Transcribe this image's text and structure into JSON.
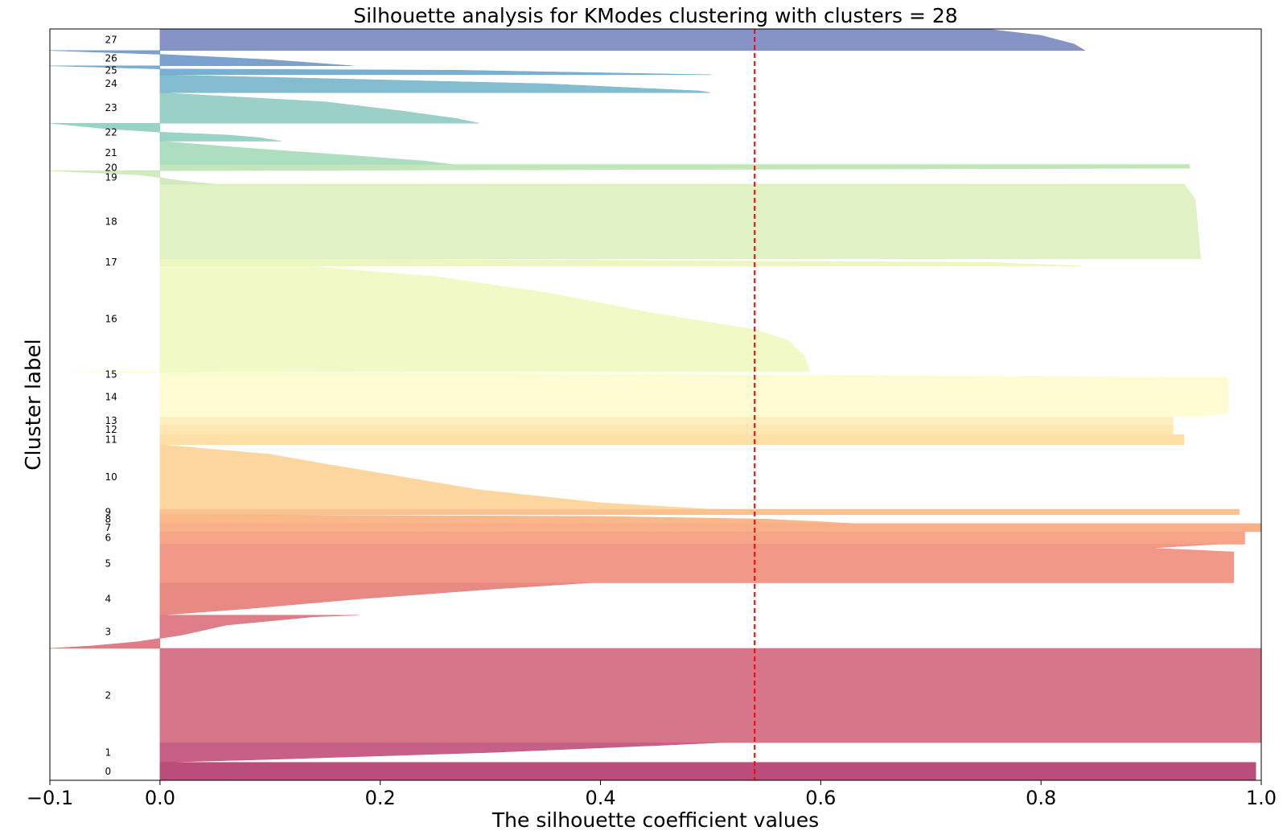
{
  "chart_data": {
    "type": "silhouette",
    "title": "Silhouette analysis for KModes clustering with clusters = 28",
    "xlabel": "The silhouette coefficient values",
    "ylabel": "Cluster label",
    "xlim": [
      -0.1,
      1.0
    ],
    "x_ticks": [
      -0.1,
      0.0,
      0.2,
      0.4,
      0.6,
      0.8,
      1.0
    ],
    "x_tick_labels": [
      "−0.1",
      "0.0",
      "0.2",
      "0.4",
      "0.6",
      "0.8",
      "1.0"
    ],
    "average_score": 0.54,
    "average_line_color": "#ff0000",
    "clusters": [
      {
        "label": "0",
        "ystart": 0,
        "size": 20,
        "color": "#b23a6a",
        "profile": [
          [
            0,
            0.995
          ],
          [
            1,
            0.995
          ]
        ]
      },
      {
        "label": "1",
        "ystart": 20,
        "size": 22,
        "color": "#c24e7a",
        "profile": [
          [
            0,
            0.51
          ],
          [
            0.15,
            0.45
          ],
          [
            0.5,
            0.3
          ],
          [
            0.85,
            0.1
          ],
          [
            1,
            0.0
          ]
        ]
      },
      {
        "label": "2",
        "ystart": 42,
        "size": 105,
        "color": "#d3677e",
        "profile": [
          [
            0,
            1.0
          ],
          [
            1,
            1.0
          ]
        ]
      },
      {
        "label": "3",
        "ystart": 147,
        "size": 37,
        "color": "#dc6f7b",
        "profile": [
          [
            0,
            0.18
          ],
          [
            0.05,
            0.14
          ],
          [
            0.3,
            0.06
          ],
          [
            0.6,
            0.02
          ],
          [
            0.8,
            -0.02
          ],
          [
            0.92,
            -0.06
          ],
          [
            1,
            -0.1
          ]
        ]
      },
      {
        "label": "4",
        "ystart": 184,
        "size": 36,
        "color": "#e57c77",
        "profile": [
          [
            0,
            0.39
          ],
          [
            0.2,
            0.3
          ],
          [
            0.5,
            0.18
          ],
          [
            0.8,
            0.08
          ],
          [
            1,
            0.0
          ]
        ]
      },
      {
        "label": "5",
        "ystart": 220,
        "size": 43,
        "color": "#f08d7c",
        "profile": [
          [
            0,
            0.96
          ],
          [
            0.1,
            0.9
          ],
          [
            0.2,
            0.975
          ],
          [
            1,
            0.975
          ]
        ]
      },
      {
        "label": "6",
        "ystart": 263,
        "size": 14,
        "color": "#f59b7c",
        "profile": [
          [
            0,
            0.985
          ],
          [
            1,
            0.985
          ]
        ]
      },
      {
        "label": "7",
        "ystart": 277,
        "size": 9,
        "color": "#f8a77d",
        "profile": [
          [
            0,
            1.0
          ],
          [
            1,
            1.0
          ]
        ]
      },
      {
        "label": "8",
        "ystart": 286,
        "size": 10,
        "color": "#faaf7d",
        "profile": [
          [
            0,
            0.0
          ],
          [
            0.2,
            0.4
          ],
          [
            0.5,
            0.55
          ],
          [
            0.8,
            0.6
          ],
          [
            1,
            0.63
          ]
        ]
      },
      {
        "label": "9",
        "ystart": 296,
        "size": 6,
        "color": "#fbba83",
        "profile": [
          [
            0,
            0.98
          ],
          [
            1,
            0.98
          ]
        ]
      },
      {
        "label": "10",
        "ystart": 302,
        "size": 72,
        "color": "#fdd195",
        "profile": [
          [
            0,
            0.0
          ],
          [
            0.15,
            0.1
          ],
          [
            0.3,
            0.15
          ],
          [
            0.5,
            0.22
          ],
          [
            0.7,
            0.29
          ],
          [
            0.9,
            0.4
          ],
          [
            1,
            0.5
          ]
        ]
      },
      {
        "label": "11",
        "ystart": 374,
        "size": 11,
        "color": "#fedb9f",
        "profile": [
          [
            0,
            0.93
          ],
          [
            1,
            0.93
          ]
        ]
      },
      {
        "label": "12",
        "ystart": 385,
        "size": 11,
        "color": "#fee4ab",
        "profile": [
          [
            0,
            0.92
          ],
          [
            1,
            0.92
          ]
        ]
      },
      {
        "label": "13",
        "ystart": 396,
        "size": 9,
        "color": "#feecb8",
        "profile": [
          [
            0,
            0.92
          ],
          [
            1,
            0.92
          ]
        ]
      },
      {
        "label": "14",
        "ystart": 405,
        "size": 44,
        "color": "#fffccf",
        "profile": [
          [
            0,
            0.97
          ],
          [
            0.9,
            0.97
          ],
          [
            1,
            0.94
          ]
        ]
      },
      {
        "label": "15",
        "ystart": 449,
        "size": 6,
        "color": "#f9fccd",
        "profile": [
          [
            0,
            -0.08
          ],
          [
            0.4,
            0.4
          ],
          [
            1,
            0.91
          ]
        ]
      },
      {
        "label": "16",
        "ystart": 455,
        "size": 118,
        "color": "#f0f9c0",
        "profile": [
          [
            0,
            0.13
          ],
          [
            0.1,
            0.25
          ],
          [
            0.25,
            0.35
          ],
          [
            0.45,
            0.45
          ],
          [
            0.6,
            0.54
          ],
          [
            0.7,
            0.57
          ],
          [
            0.85,
            0.585
          ],
          [
            1,
            0.59
          ]
        ]
      },
      {
        "label": "17",
        "ystart": 573,
        "size": 8,
        "color": "#e9f5b9",
        "profile": [
          [
            0,
            0.14
          ],
          [
            0.5,
            0.75
          ],
          [
            1,
            0.835
          ]
        ]
      },
      {
        "label": "18",
        "ystart": 581,
        "size": 83,
        "color": "#ddefbc",
        "profile": [
          [
            0,
            0.93
          ],
          [
            0.2,
            0.94
          ],
          [
            1,
            0.945
          ]
        ]
      },
      {
        "label": "19",
        "ystart": 664,
        "size": 15,
        "color": "#cde8b8",
        "profile": [
          [
            0,
            -0.1
          ],
          [
            0.3,
            -0.02
          ],
          [
            0.5,
            0.0
          ],
          [
            0.75,
            0.02
          ],
          [
            1,
            0.05
          ]
        ]
      },
      {
        "label": "20",
        "ystart": 679,
        "size": 7,
        "color": "#bde3b4",
        "profile": [
          [
            0,
            0.935
          ],
          [
            0.6,
            0.935
          ],
          [
            1,
            -0.03
          ]
        ]
      },
      {
        "label": "21",
        "ystart": 686,
        "size": 26,
        "color": "#a5dabb",
        "profile": [
          [
            0,
            0.0
          ],
          [
            0.3,
            0.08
          ],
          [
            0.6,
            0.17
          ],
          [
            0.85,
            0.24
          ],
          [
            1,
            0.265
          ]
        ]
      },
      {
        "label": "22",
        "ystart": 712,
        "size": 20,
        "color": "#8ccfbd",
        "profile": [
          [
            0,
            -0.1
          ],
          [
            0.3,
            -0.05
          ],
          [
            0.5,
            0.0
          ],
          [
            0.65,
            0.06
          ],
          [
            0.8,
            0.09
          ],
          [
            1,
            0.11
          ]
        ]
      },
      {
        "label": "23",
        "ystart": 732,
        "size": 34,
        "color": "#8fcbc1",
        "profile": [
          [
            0,
            0.0
          ],
          [
            0.3,
            0.15
          ],
          [
            0.6,
            0.22
          ],
          [
            0.85,
            0.27
          ],
          [
            1,
            0.29
          ]
        ]
      },
      {
        "label": "24",
        "ystart": 766,
        "size": 20,
        "color": "#76b6ca",
        "profile": [
          [
            0,
            0.0
          ],
          [
            0.5,
            0.35
          ],
          [
            0.9,
            0.49
          ],
          [
            1,
            0.5
          ]
        ]
      },
      {
        "label": "25",
        "ystart": 786,
        "size": 10,
        "color": "#6ba6cc",
        "profile": [
          [
            0,
            -0.1
          ],
          [
            0.35,
            0.0
          ],
          [
            0.5,
            0.27
          ],
          [
            1,
            0.5
          ]
        ]
      },
      {
        "label": "26",
        "ystart": 796,
        "size": 17,
        "color": "#6d98c8",
        "profile": [
          [
            0,
            -0.1
          ],
          [
            0.25,
            0.0
          ],
          [
            0.6,
            0.1
          ],
          [
            1,
            0.175
          ]
        ]
      },
      {
        "label": "27",
        "ystart": 813,
        "size": 24,
        "color": "#7987c0",
        "profile": [
          [
            0,
            0.75
          ],
          [
            0.3,
            0.8
          ],
          [
            0.7,
            0.83
          ],
          [
            1,
            0.84
          ]
        ]
      }
    ],
    "ylim": [
      0,
      837
    ],
    "legend": "none",
    "grid": false
  }
}
